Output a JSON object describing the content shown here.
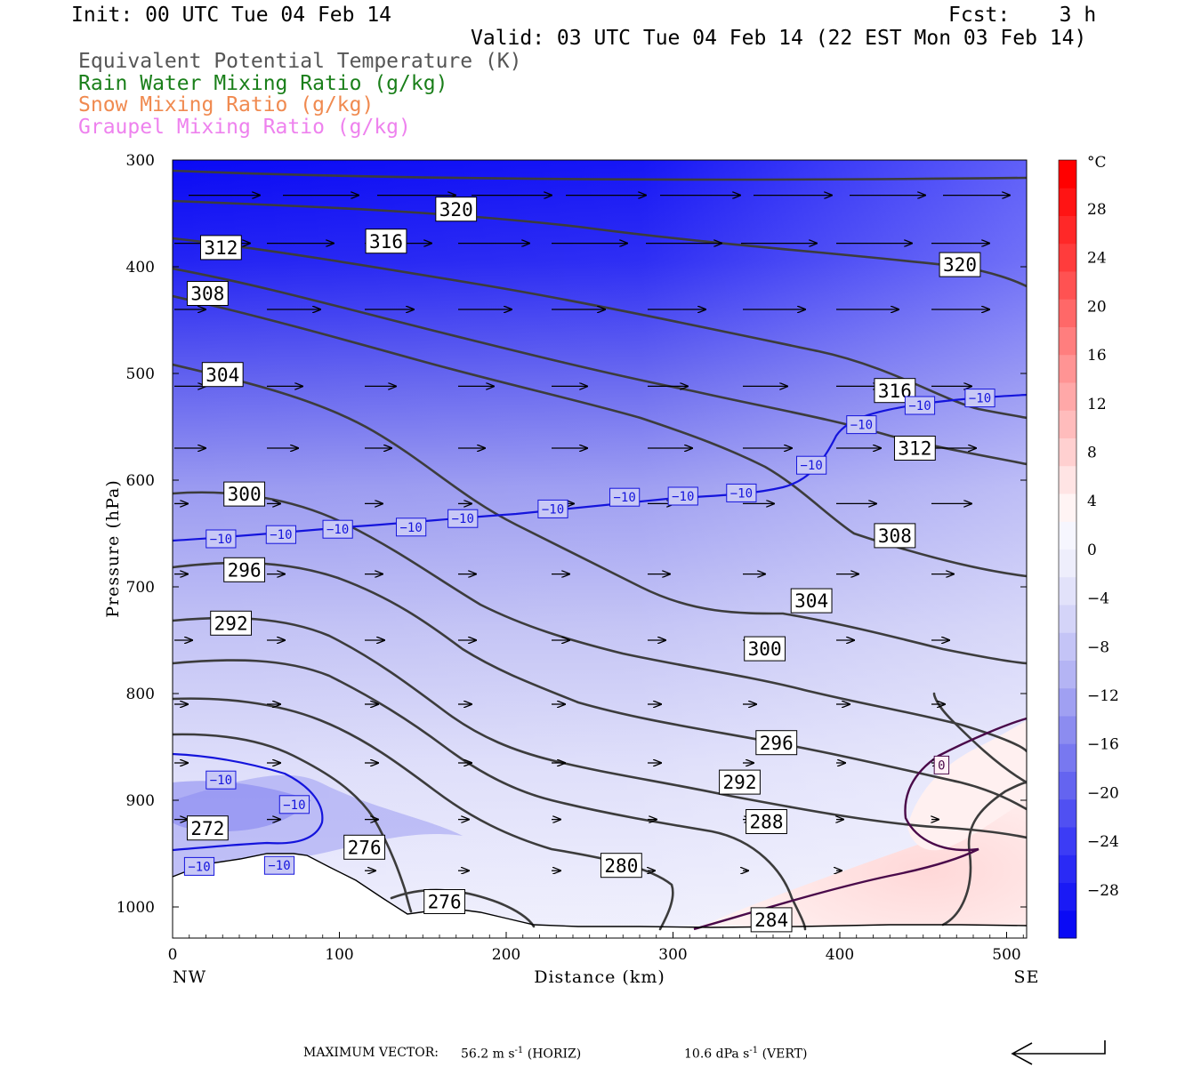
{
  "header": {
    "init": "Init: 00 UTC Tue 04 Feb 14",
    "fcst": "Fcst:    3 h",
    "valid": "Valid: 03 UTC Tue 04 Feb 14 (22 EST Mon 03 Feb 14)"
  },
  "legend": [
    {
      "text": "Equivalent Potential Temperature (K)",
      "color": "#555555"
    },
    {
      "text": "Rain Water Mixing Ratio (g/kg)",
      "color": "#1a7f1a"
    },
    {
      "text": "Snow Mixing Ratio (g/kg)",
      "color": "#f08a50"
    },
    {
      "text": "Graupel Mixing Ratio (g/kg)",
      "color": "#ee82ee"
    }
  ],
  "footer": {
    "max_vector_label": "MAXIMUM VECTOR:",
    "horiz_value": "56.2 m s",
    "horiz_unit": "(HORIZ)",
    "vert_value": "10.6 dPa s",
    "vert_unit": "(VERT)",
    "exponent": "-1"
  },
  "chart_data": {
    "type": "cross-section",
    "xlabel": "Distance (km)",
    "ylabel": "Pressure (hPa)",
    "x_end_labels": {
      "left": "NW",
      "right": "SE"
    },
    "xlim": [
      0,
      512
    ],
    "ylim": [
      300,
      1030
    ],
    "x_ticks": [
      "0",
      "100",
      "200",
      "300",
      "400",
      "500"
    ],
    "y_ticks": [
      "300",
      "400",
      "500",
      "600",
      "700",
      "800",
      "900",
      "1000"
    ],
    "colorbar": {
      "unit": "°C",
      "labels": [
        "28",
        "24",
        "20",
        "16",
        "12",
        "8",
        "4",
        "0",
        "−4",
        "−8",
        "−12",
        "−16",
        "−20",
        "−24",
        "−28"
      ],
      "colors": [
        "#0a0af5",
        "#1a1af5",
        "#2a2af5",
        "#3c3cf5",
        "#5050f2",
        "#6464f0",
        "#7878f0",
        "#8c8cf0",
        "#a0a0f2",
        "#b4b4f4",
        "#c4c4f6",
        "#d4d4f8",
        "#e2e2fa",
        "#eeeefc",
        "#f6f6fe",
        "#fff4f4",
        "#ffe4e4",
        "#ffd0d0",
        "#ffbcbc",
        "#ffa8a8",
        "#ff9494",
        "#ff7e7e",
        "#ff6868",
        "#ff5252",
        "#ff3c3c",
        "#ff2828",
        "#ff1414",
        "#ff0000"
      ]
    },
    "colors": {
      "theta_e": "#3c3c3c",
      "temp_contour": "#1414dc",
      "zero_contour": "#4a0a4a",
      "terrain_line": "#000000"
    },
    "theta_e_labels": [
      {
        "text": "320",
        "x": 170,
        "p": 346
      },
      {
        "text": "320",
        "x": 472,
        "p": 398
      },
      {
        "text": "316",
        "x": 128,
        "p": 376
      },
      {
        "text": "316",
        "x": 433,
        "p": 516
      },
      {
        "text": "312",
        "x": 29,
        "p": 382
      },
      {
        "text": "312",
        "x": 445,
        "p": 570
      },
      {
        "text": "308",
        "x": 21,
        "p": 425
      },
      {
        "text": "308",
        "x": 433,
        "p": 652
      },
      {
        "text": "304",
        "x": 30,
        "p": 501
      },
      {
        "text": "304",
        "x": 383,
        "p": 713
      },
      {
        "text": "300",
        "x": 43,
        "p": 613
      },
      {
        "text": "300",
        "x": 355,
        "p": 758
      },
      {
        "text": "296",
        "x": 43,
        "p": 684
      },
      {
        "text": "296",
        "x": 362,
        "p": 846
      },
      {
        "text": "292",
        "x": 35,
        "p": 734
      },
      {
        "text": "292",
        "x": 340,
        "p": 883
      },
      {
        "text": "288",
        "x": 356,
        "p": 920
      },
      {
        "text": "284",
        "x": 359,
        "p": 1012
      },
      {
        "text": "280",
        "x": 269,
        "p": 961
      },
      {
        "text": "276",
        "x": 115,
        "p": 944
      },
      {
        "text": "276",
        "x": 163,
        "p": 995
      },
      {
        "text": "272",
        "x": 21,
        "p": 926
      }
    ],
    "temp_labels": [
      {
        "text": "−10",
        "x": 29,
        "p": 655
      },
      {
        "text": "−10",
        "x": 65,
        "p": 651
      },
      {
        "text": "−10",
        "x": 99,
        "p": 646
      },
      {
        "text": "−10",
        "x": 143,
        "p": 644
      },
      {
        "text": "−10",
        "x": 174,
        "p": 636
      },
      {
        "text": "−10",
        "x": 228,
        "p": 627
      },
      {
        "text": "−10",
        "x": 271,
        "p": 616
      },
      {
        "text": "−10",
        "x": 306,
        "p": 615
      },
      {
        "text": "−10",
        "x": 341,
        "p": 612
      },
      {
        "text": "−10",
        "x": 383,
        "p": 586
      },
      {
        "text": "−10",
        "x": 413,
        "p": 548
      },
      {
        "text": "−10",
        "x": 448,
        "p": 530
      },
      {
        "text": "−10",
        "x": 484,
        "p": 523
      },
      {
        "text": "−10",
        "x": 29,
        "p": 881
      },
      {
        "text": "−10",
        "x": 73,
        "p": 904
      },
      {
        "text": "−10",
        "x": 64,
        "p": 961
      },
      {
        "text": "−10",
        "x": 16,
        "p": 962
      },
      {
        "text": "0",
        "x": 461,
        "p": 867
      }
    ]
  }
}
